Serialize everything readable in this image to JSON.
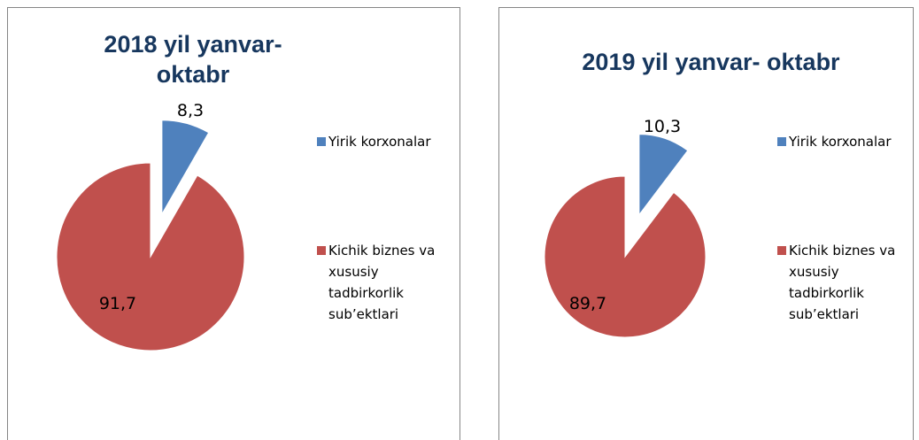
{
  "chart_data": [
    {
      "type": "pie",
      "title": "2018 yil yanvar- oktabr",
      "categories": [
        "Yirik korxonalar",
        "Kichik biznes va xususiy tadbirkorlik sub’ektlari"
      ],
      "values": [
        8.3,
        91.7
      ],
      "value_labels": [
        "8,3",
        "91,7"
      ],
      "colors": [
        "#4f81bd",
        "#c0504d"
      ],
      "legend": "right"
    },
    {
      "type": "pie",
      "title": "2019 yil yanvar- oktabr",
      "categories": [
        "Yirik korxonalar",
        "Kichik biznes va xususiy tadbirkorlik sub’ektlari"
      ],
      "values": [
        10.3,
        89.7
      ],
      "value_labels": [
        "10,3",
        "89,7"
      ],
      "colors": [
        "#4f81bd",
        "#c0504d"
      ],
      "legend": "right"
    }
  ]
}
